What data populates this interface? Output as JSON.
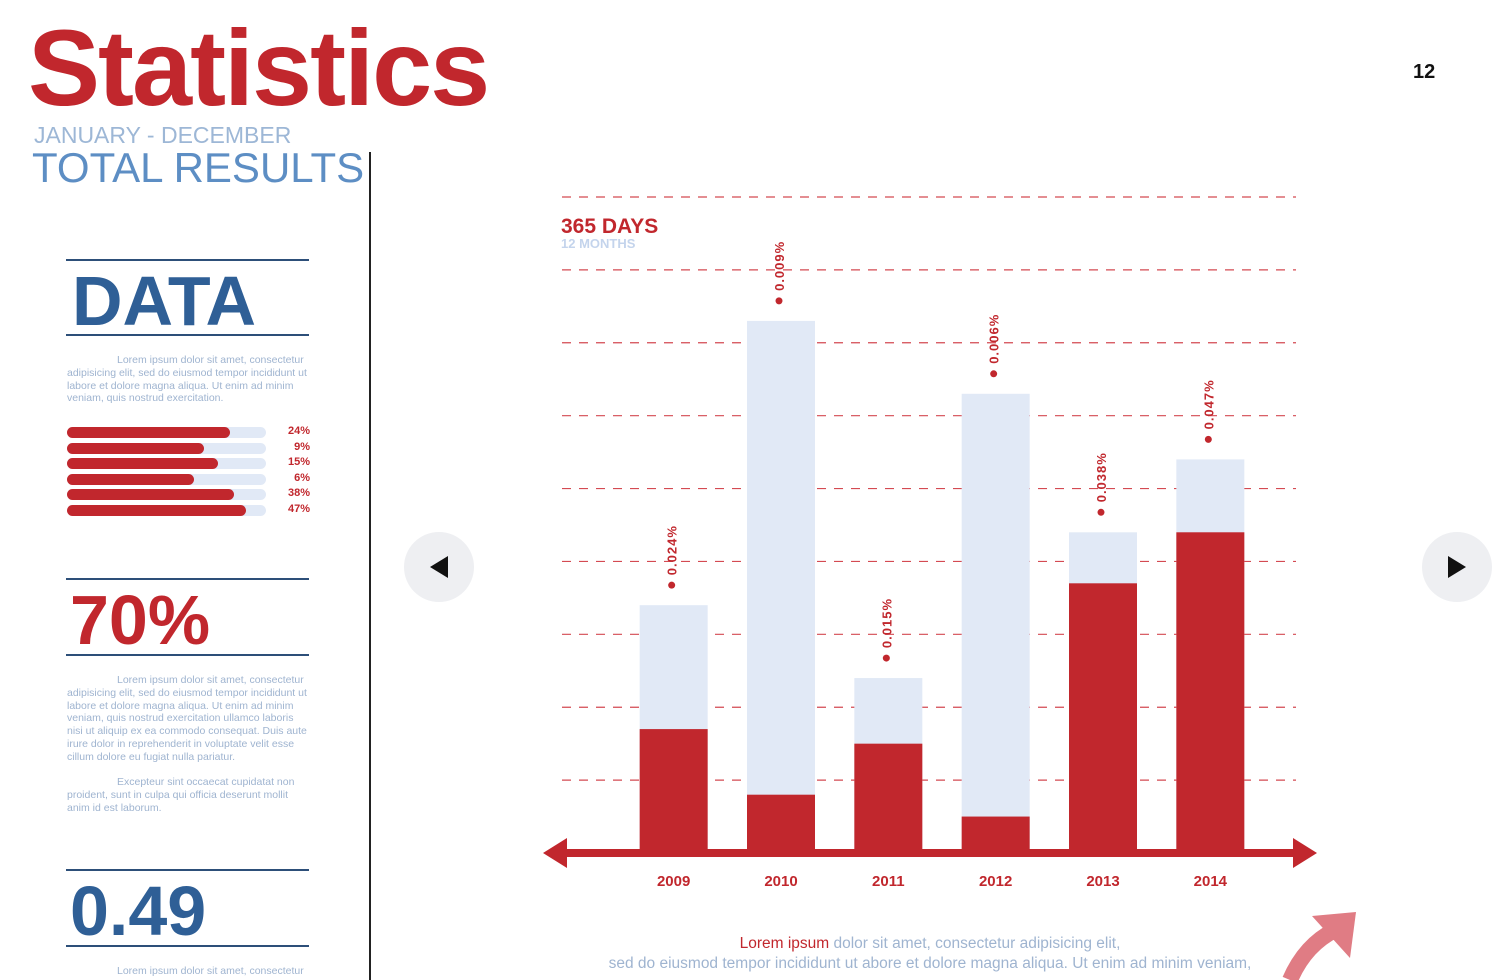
{
  "header": {
    "title": "Statistics",
    "page_number": "12",
    "period": "JANUARY - DECEMBER",
    "subtitle": "TOTAL RESULTS"
  },
  "sidebar": {
    "data_heading": "DATA",
    "data_text": "Lorem ipsum dolor sit amet, consectetur adipisicing elit, sed do eiusmod tempor incididunt ut labore et dolore magna aliqua. Ut enim ad minim veniam, quis nostrud exercitation.",
    "bars": [
      {
        "label": "24%",
        "fill": 0.82
      },
      {
        "label": "9%",
        "fill": 0.69
      },
      {
        "label": "15%",
        "fill": 0.76
      },
      {
        "label": "6%",
        "fill": 0.64
      },
      {
        "label": "38%",
        "fill": 0.84
      },
      {
        "label": "47%",
        "fill": 0.9
      }
    ],
    "stat_percent": "70%",
    "stat_text_1": "Lorem ipsum dolor sit amet, consectetur adipisicing elit, sed do eiusmod tempor incididunt ut labore et dolore magna aliqua. Ut enim ad minim veniam, quis nostrud exercitation ullamco laboris nisi ut aliquip ex ea commodo consequat. Duis aute irure dolor in reprehenderit in voluptate velit esse cillum dolore eu fugiat nulla pariatur.",
    "stat_text_2": "Excepteur sint occaecat cupidatat non proident, sunt in culpa qui officia deserunt mollit anim id est laborum.",
    "stat_number": "0.49",
    "stat_number_text": "Lorem ipsum dolor sit amet, consectetur"
  },
  "nav": {
    "prev_icon": "triangle-left-icon",
    "next_icon": "triangle-right-icon"
  },
  "caption": {
    "highlight": "Lorem ipsum",
    "rest_line1": " dolor sit amet, consectetur adipisicing elit,",
    "line2": "sed do eiusmod tempor incididunt ut abore et dolore magna aliqua. Ut enim ad minim veniam,"
  },
  "colors": {
    "accent": "#c1272d",
    "light_bar": "#e1e9f6",
    "title_blue": "#2f5f96",
    "muted_blue": "#9fb4d0",
    "arrow_pink": "#e07c84"
  },
  "chart_data": {
    "type": "bar",
    "title": "365 DAYS",
    "subtitle": "12 MONTHS",
    "categories": [
      "2009",
      "2010",
      "2011",
      "2012",
      "2013",
      "2014"
    ],
    "series": [
      {
        "values": [
          3.4,
          7.3,
          2.4,
          6.3,
          4.4,
          5.4
        ]
      },
      {
        "values": [
          1.7,
          0.8,
          1.5,
          0.5,
          3.7,
          4.4
        ]
      }
    ],
    "labels": [
      "0.024%",
      "0.009%",
      "0.015%",
      "0.006%",
      "0.038%",
      "0.047%"
    ],
    "ylim": [
      0,
      9
    ],
    "grid": true,
    "gridlines": 9
  }
}
